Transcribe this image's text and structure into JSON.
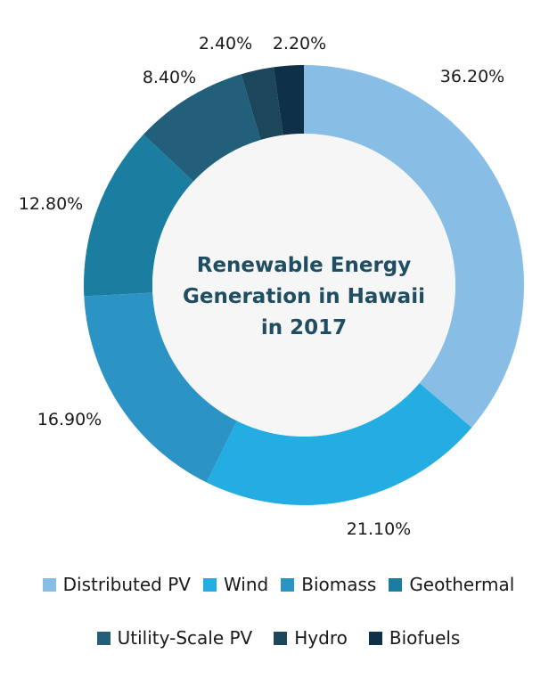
{
  "chart_data": {
    "type": "pie",
    "variant": "donut",
    "title": [
      "Renewable Energy",
      "Generation in Hawaii",
      "in 2017"
    ],
    "categories": [
      "Distributed PV",
      "Wind",
      "Biomass",
      "Geothermal",
      "Utility-Scale PV",
      "Hydro",
      "Biofuels"
    ],
    "values": [
      36.2,
      21.1,
      16.9,
      12.8,
      8.4,
      2.4,
      2.2
    ],
    "labels": [
      "36.20%",
      "21.10%",
      "16.90%",
      "12.80%",
      "8.40%",
      "2.40%",
      "2.20%"
    ],
    "colors": [
      "#88bde6",
      "#23ade2",
      "#2b94c4",
      "#1b7d9f",
      "#215f7b",
      "#1c4659",
      "#0e3148"
    ],
    "legend_position": "bottom"
  }
}
